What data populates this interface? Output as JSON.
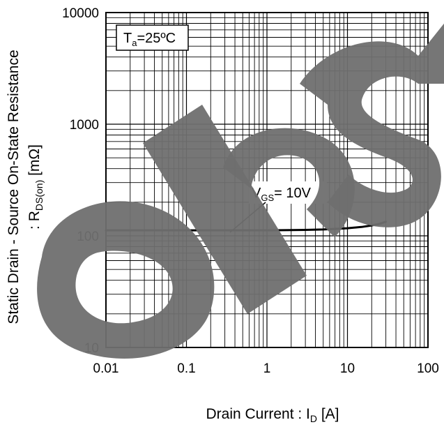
{
  "chart_data": {
    "type": "line",
    "title": "",
    "xlabel": {
      "text": "Drain Current : I",
      "sub": "D",
      "unit": " [A]"
    },
    "ylabel": {
      "line1": "Static Drain - Source On-State Resistance",
      "line2_prefix": ": R",
      "line2_sub": "DS(on)",
      "line2_unit": " [mΩ]"
    },
    "x_scale": "log",
    "y_scale": "log",
    "xlim": [
      0.01,
      100
    ],
    "ylim": [
      10,
      10000
    ],
    "x_ticks": [
      "0.01",
      "0.1",
      "1",
      "10",
      "100"
    ],
    "y_ticks": [
      "10",
      "100",
      "1000",
      "10000"
    ],
    "grid": true,
    "condition_box": {
      "prefix": "T",
      "sub": "a",
      "suffix": "=25ºC"
    },
    "series": [
      {
        "name": "V_GS = 10V",
        "label_prefix": "V",
        "label_sub": "GS",
        "label_suffix": "= 10V",
        "color": "#000000",
        "x": [
          0.01,
          0.05,
          0.1,
          0.5,
          1,
          2,
          3,
          5,
          8,
          10,
          15,
          20,
          25,
          30
        ],
        "y": [
          112,
          112,
          112,
          112,
          112,
          112.5,
          113,
          114,
          116,
          117,
          120,
          124,
          128,
          134
        ]
      }
    ],
    "watermark": "obs"
  }
}
